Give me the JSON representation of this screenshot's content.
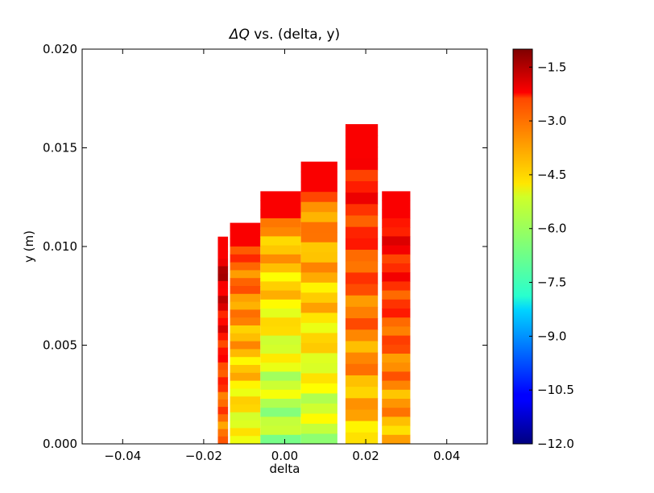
{
  "chart_data": {
    "type": "heatmap",
    "title": "ΔQ vs. (delta, y)",
    "title_symbol": "ΔQ",
    "title_rest": " vs. (delta, y)",
    "xlabel": "delta",
    "ylabel": "y (m)",
    "xlim": [
      -0.05,
      0.05
    ],
    "ylim": [
      0.0,
      0.02
    ],
    "x_ticks": [
      {
        "value": -0.04,
        "label": "−0.04"
      },
      {
        "value": -0.02,
        "label": "−0.02"
      },
      {
        "value": 0.0,
        "label": "0.00"
      },
      {
        "value": 0.02,
        "label": "0.02"
      },
      {
        "value": 0.04,
        "label": "0.04"
      }
    ],
    "y_ticks": [
      {
        "value": 0.0,
        "label": "0.000"
      },
      {
        "value": 0.005,
        "label": "0.005"
      },
      {
        "value": 0.01,
        "label": "0.010"
      },
      {
        "value": 0.015,
        "label": "0.015"
      },
      {
        "value": 0.02,
        "label": "0.020"
      }
    ],
    "colorbar": {
      "colormap": "jet",
      "range": [
        -12.0,
        -1.0
      ],
      "ticks": [
        {
          "value": -1.5,
          "label": "−1.5"
        },
        {
          "value": -3.0,
          "label": "−3.0"
        },
        {
          "value": -4.5,
          "label": "−4.5"
        },
        {
          "value": -6.0,
          "label": "−6.0"
        },
        {
          "value": -7.5,
          "label": "−7.5"
        },
        {
          "value": -9.0,
          "label": "−9.0"
        },
        {
          "value": -10.5,
          "label": "−10.5"
        },
        {
          "value": -12.0,
          "label": "−12.0"
        }
      ]
    },
    "regions": [
      {
        "x_min": -0.0165,
        "x_max": -0.014,
        "y_max": 0.0105,
        "value": -2.6
      },
      {
        "x_min": -0.0135,
        "x_max": -0.006,
        "y_max": 0.0112,
        "value": -4.2
      },
      {
        "x_min": -0.006,
        "x_max": 0.004,
        "y_max": 0.0128,
        "value": -5.0
      },
      {
        "x_min": 0.004,
        "x_max": 0.013,
        "y_max": 0.0143,
        "value": -4.6
      },
      {
        "x_min": 0.015,
        "x_max": 0.023,
        "y_max": 0.0162,
        "value": -3.4
      },
      {
        "x_min": 0.024,
        "x_max": 0.031,
        "y_max": 0.0128,
        "value": -3.2
      }
    ]
  }
}
